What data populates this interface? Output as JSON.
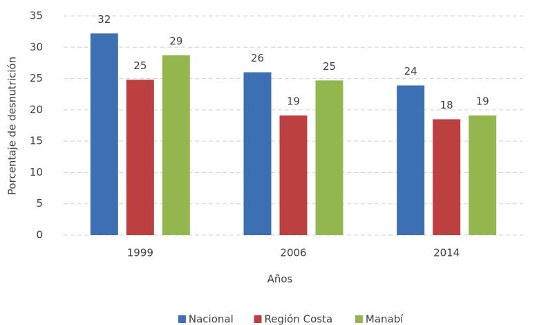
{
  "chart_data": {
    "type": "bar",
    "categories": [
      "1999",
      "2006",
      "2014"
    ],
    "series": [
      {
        "name": "Nacional",
        "color": "#3c70b3",
        "values": [
          32.2,
          26.0,
          23.9
        ],
        "value_labels": [
          "32",
          "26",
          "24"
        ]
      },
      {
        "name": "Región Costa",
        "color": "#bd4040",
        "values": [
          24.8,
          19.1,
          18.5
        ],
        "value_labels": [
          "25",
          "19",
          "18"
        ]
      },
      {
        "name": "Manabí",
        "color": "#93b74e",
        "values": [
          28.7,
          24.7,
          19.1
        ],
        "value_labels": [
          "29",
          "25",
          "19"
        ]
      }
    ],
    "ylim": [
      0,
      35
    ],
    "yticks": [
      0,
      5,
      10,
      15,
      20,
      25,
      30,
      35
    ],
    "y_label": "Porcentaje de desnutrición",
    "x_label": "Años",
    "grid": true,
    "legend": "bottom"
  }
}
